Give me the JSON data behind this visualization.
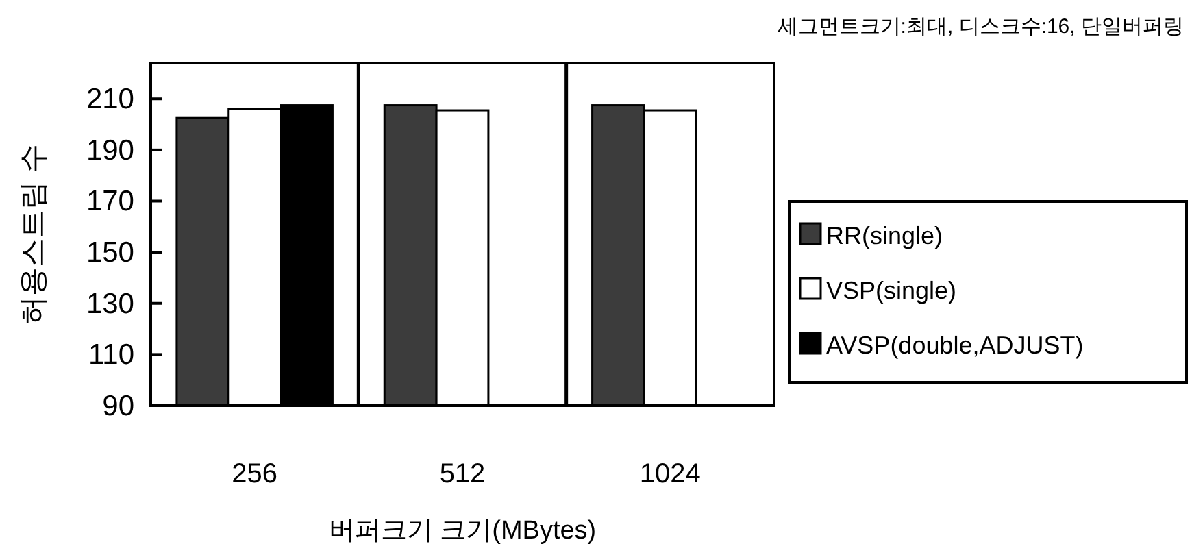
{
  "chart_data": {
    "type": "bar",
    "subtitle": "세그먼트크기:최대, 디스크수:16, 단일버퍼링",
    "xlabel": "버퍼크기 크기(MBytes)",
    "ylabel": "허용스트림 수",
    "categories": [
      "256",
      "512",
      "1024"
    ],
    "series": [
      {
        "name": "RR(single)",
        "color": "#3c3c3c",
        "values": [
          202.5,
          207.5,
          207.5
        ]
      },
      {
        "name": "VSP(single)",
        "color": "#ffffff",
        "values": [
          206,
          205.5,
          205.5
        ]
      },
      {
        "name": "AVSP(double,ADJUST)",
        "color": "#000000",
        "values": [
          207.5,
          null,
          null
        ]
      }
    ],
    "ylim": [
      90,
      224
    ],
    "yticks": [
      90,
      110,
      130,
      150,
      170,
      190,
      210
    ],
    "grid": "x",
    "legend": "right"
  }
}
